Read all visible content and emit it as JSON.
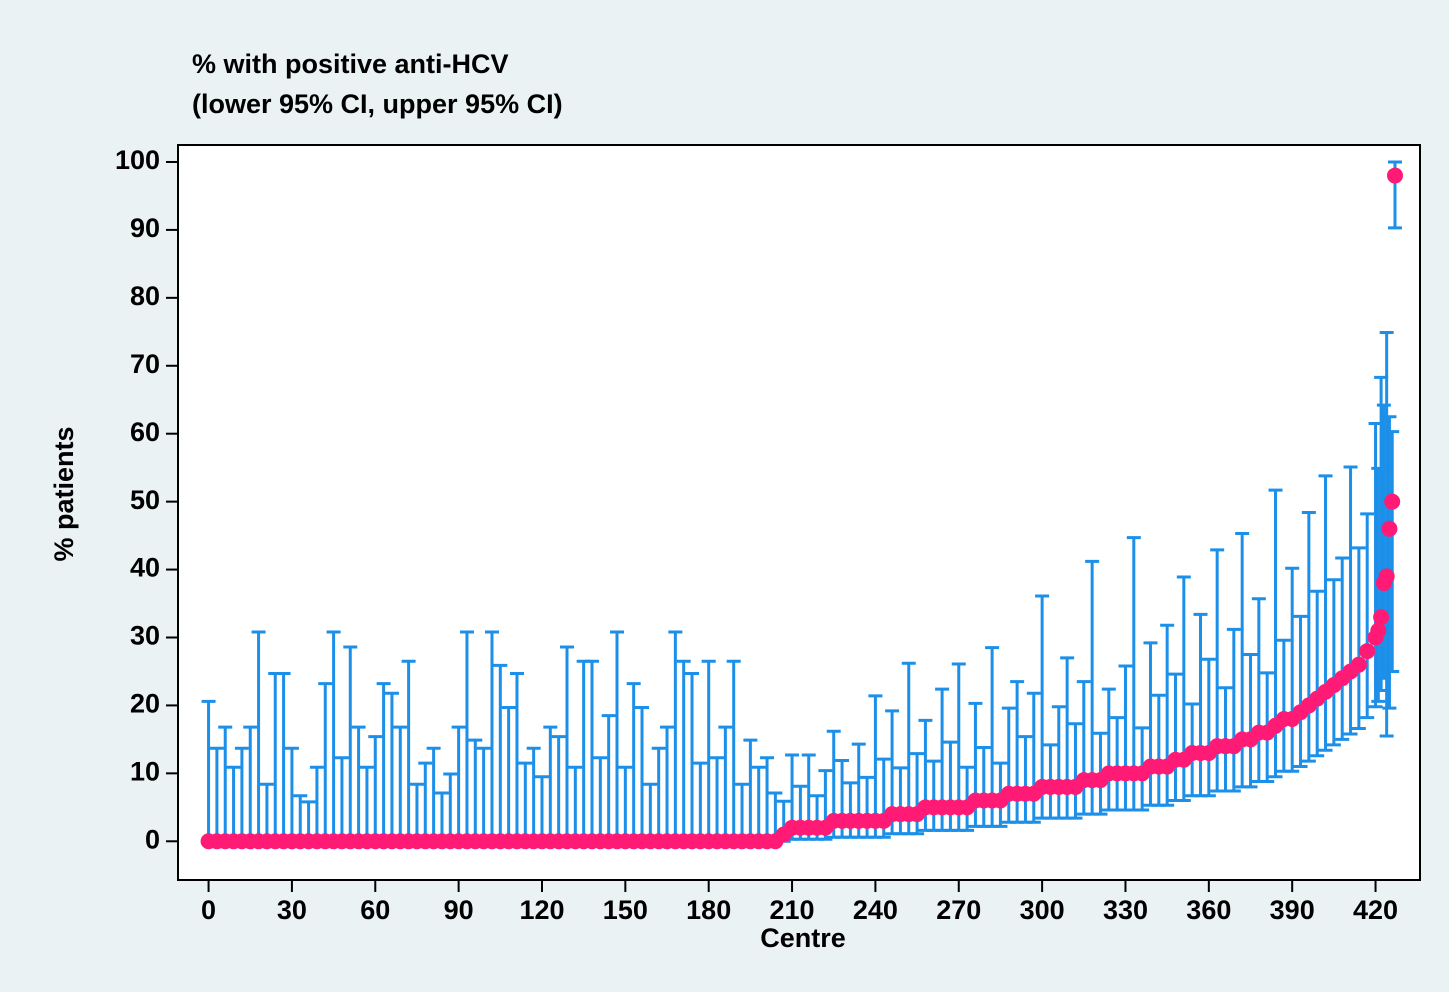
{
  "chart_data": {
    "type": "errorbar",
    "title": [
      "% with positive anti-HCV",
      "(lower 95% CI, upper 95% CI)"
    ],
    "x_label": "Centre",
    "y_label": "% patients",
    "xlim": [
      -11,
      436
    ],
    "ylim": [
      -5.7,
      102.5
    ],
    "xticks": [
      0,
      30,
      60,
      90,
      120,
      150,
      180,
      210,
      240,
      270,
      300,
      330,
      360,
      390,
      420
    ],
    "yticks": [
      0,
      10,
      20,
      30,
      40,
      50,
      60,
      70,
      80,
      90,
      100
    ],
    "point_color": "#ff1a75",
    "bar_color": "#1c8fe8",
    "x": [
      0,
      3,
      6,
      9,
      12,
      15,
      18,
      21,
      24,
      27,
      30,
      33,
      36,
      39,
      42,
      45,
      48,
      51,
      54,
      57,
      60,
      63,
      66,
      69,
      72,
      75,
      78,
      81,
      84,
      87,
      90,
      93,
      96,
      99,
      102,
      105,
      108,
      111,
      114,
      117,
      120,
      123,
      126,
      129,
      132,
      135,
      138,
      141,
      144,
      147,
      150,
      153,
      156,
      159,
      162,
      165,
      168,
      171,
      174,
      177,
      180,
      183,
      186,
      189,
      192,
      195,
      198,
      201,
      204,
      207,
      210,
      213,
      216,
      219,
      222,
      225,
      228,
      231,
      234,
      237,
      240,
      243,
      246,
      249,
      252,
      255,
      258,
      261,
      264,
      267,
      270,
      273,
      276,
      279,
      282,
      285,
      288,
      291,
      294,
      297,
      300,
      303,
      306,
      309,
      312,
      315,
      318,
      321,
      324,
      327,
      330,
      333,
      336,
      339,
      342,
      345,
      348,
      351,
      354,
      357,
      360,
      363,
      366,
      369,
      372,
      375,
      378,
      381,
      384,
      387,
      390,
      393,
      396,
      399,
      402,
      405,
      408,
      411,
      414,
      417,
      420,
      421,
      422,
      423,
      424,
      425,
      426,
      427
    ],
    "values": [
      0,
      0,
      0,
      0,
      0,
      0,
      0,
      0,
      0,
      0,
      0,
      0,
      0,
      0,
      0,
      0,
      0,
      0,
      0,
      0,
      0,
      0,
      0,
      0,
      0,
      0,
      0,
      0,
      0,
      0,
      0,
      0,
      0,
      0,
      0,
      0,
      0,
      0,
      0,
      0,
      0,
      0,
      0,
      0,
      0,
      0,
      0,
      0,
      0,
      0,
      0,
      0,
      0,
      0,
      0,
      0,
      0,
      0,
      0,
      0,
      0,
      0,
      0,
      0,
      0,
      0,
      0,
      0,
      0,
      1,
      2,
      2,
      2,
      2,
      2,
      3,
      3,
      3,
      3,
      3,
      3,
      3,
      4,
      4,
      4,
      4,
      5,
      5,
      5,
      5,
      5,
      5,
      6,
      6,
      6,
      6,
      7,
      7,
      7,
      7,
      8,
      8,
      8,
      8,
      8,
      9,
      9,
      9,
      10,
      10,
      10,
      10,
      10,
      11,
      11,
      11,
      12,
      12,
      13,
      13,
      13,
      14,
      14,
      14,
      15,
      15,
      16,
      16,
      17,
      18,
      18,
      19,
      20,
      21,
      22,
      23,
      24,
      25,
      26,
      28,
      30,
      31,
      33,
      38,
      39,
      46,
      50,
      98
    ],
    "lower": [
      0,
      0,
      0,
      0,
      0,
      0,
      0,
      0,
      0,
      0,
      0,
      0,
      0,
      0,
      0,
      0,
      0,
      0,
      0,
      0,
      0,
      0,
      0,
      0,
      0,
      0,
      0,
      0,
      0,
      0,
      0,
      0,
      0,
      0,
      0,
      0,
      0,
      0,
      0,
      0,
      0,
      0,
      0,
      0,
      0,
      0,
      0,
      0,
      0,
      0,
      0,
      0,
      0,
      0,
      0,
      0,
      0,
      0,
      0,
      0,
      0,
      0,
      0,
      0,
      0,
      0,
      0,
      0,
      0,
      0,
      0.3,
      0.3,
      0.3,
      0.3,
      0.3,
      0.6,
      0.6,
      0.6,
      0.6,
      0.6,
      0.6,
      0.6,
      1.1,
      1.1,
      1.1,
      1.1,
      1.6,
      1.6,
      1.6,
      1.6,
      1.6,
      1.6,
      2.2,
      2.2,
      2.2,
      2.2,
      2.8,
      2.8,
      2.8,
      2.8,
      3.4,
      3.4,
      3.4,
      3.4,
      3.4,
      4,
      4,
      4,
      4.6,
      4.6,
      4.6,
      4.6,
      4.6,
      5.3,
      5.3,
      5.3,
      6,
      6,
      6.7,
      6.7,
      6.7,
      7.4,
      7.4,
      7.4,
      8,
      8,
      8.8,
      8.8,
      9.5,
      10.3,
      10.3,
      11,
      11.8,
      12.6,
      13.4,
      14.2,
      15,
      15.8,
      16.6,
      18.2,
      19.8,
      20.6,
      22.2,
      24,
      15.5,
      19.6,
      25,
      90.3
    ],
    "upper": [
      20.6,
      13.7,
      16.8,
      10.9,
      13.7,
      16.8,
      30.8,
      8.4,
      24.7,
      24.7,
      13.7,
      6.7,
      5.8,
      10.9,
      23.2,
      30.8,
      12.3,
      28.6,
      16.8,
      10.9,
      15.4,
      23.2,
      21.8,
      16.8,
      26.5,
      8.4,
      11.5,
      13.7,
      7.1,
      9.9,
      16.8,
      30.8,
      14.9,
      13.7,
      30.8,
      25.9,
      19.7,
      24.7,
      11.5,
      13.7,
      9.5,
      16.8,
      15.4,
      28.6,
      10.9,
      26.5,
      26.5,
      12.3,
      18.5,
      30.8,
      10.9,
      23.2,
      19.7,
      8.4,
      13.7,
      16.8,
      30.8,
      26.5,
      24.7,
      11.5,
      26.5,
      12.3,
      16.8,
      26.5,
      8.4,
      14.9,
      10.9,
      12.3,
      7.1,
      5.9,
      12.7,
      8.1,
      12.7,
      6.7,
      10.4,
      16.2,
      11.9,
      8.6,
      14.3,
      9.4,
      21.4,
      12.1,
      19.2,
      10.8,
      26.2,
      12.9,
      17.8,
      11.8,
      22.4,
      14.6,
      26.1,
      10.9,
      20.3,
      13.8,
      28.5,
      11.5,
      19.6,
      23.5,
      15.4,
      21.8,
      36.1,
      14.2,
      19.8,
      27,
      17.3,
      23.5,
      41.2,
      15.9,
      22.4,
      18.2,
      25.8,
      44.7,
      16.7,
      29.2,
      21.5,
      31.8,
      24.6,
      38.9,
      20.2,
      33.4,
      26.8,
      42.9,
      22.6,
      31.2,
      45.3,
      27.5,
      35.7,
      24.8,
      51.7,
      29.6,
      40.2,
      33.1,
      48.4,
      36.8,
      53.8,
      38.5,
      41.7,
      55.1,
      43.2,
      48.2,
      61.5,
      54.9,
      68.3,
      64.2,
      74.9,
      62.5,
      60.3,
      100
    ]
  }
}
